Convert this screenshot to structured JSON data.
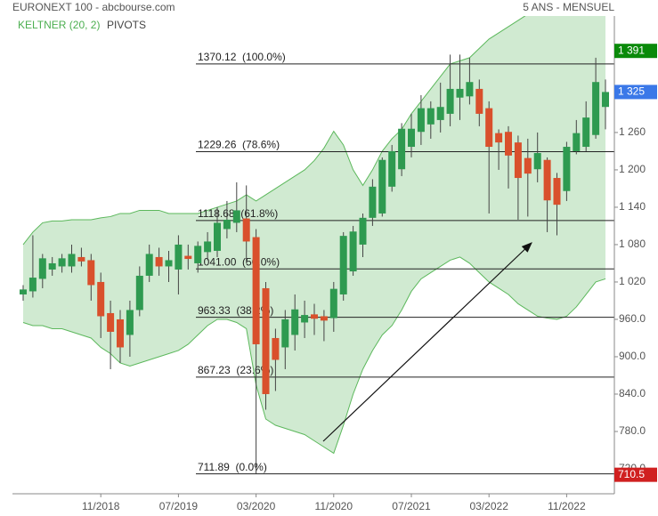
{
  "chart_data": {
    "type": "candlestick",
    "title": "EURONEXT 100 - abcbourse.com",
    "subtitle": "5 ANS - MENSUEL",
    "indicators": [
      "KELTNER (20, 2)",
      "PIVOTS"
    ],
    "categories": [
      null,
      null,
      null,
      null,
      null,
      null,
      null,
      null,
      "11/2018",
      null,
      null,
      null,
      null,
      null,
      null,
      null,
      "07/2019",
      null,
      null,
      null,
      null,
      null,
      null,
      null,
      "03/2020",
      null,
      null,
      null,
      null,
      null,
      null,
      null,
      "11/2020",
      null,
      null,
      null,
      null,
      null,
      null,
      null,
      "07/2021",
      null,
      null,
      null,
      null,
      null,
      null,
      null,
      "03/2022",
      null,
      null,
      null,
      null,
      null,
      null,
      null,
      "11/2022",
      null,
      null,
      null,
      null
    ],
    "ohlc": {
      "open": [
        1000,
        1005,
        1025,
        1040,
        1045,
        1045,
        1060,
        1055,
        1020,
        970,
        960,
        935,
        975,
        1030,
        1060,
        1045,
        1040,
        1062,
        1050,
        1068,
        1070,
        1105,
        1115,
        1122,
        1092,
        1010,
        930,
        915,
        935,
        955,
        968,
        965,
        962,
        1000,
        1037,
        1080,
        1123,
        1130,
        1173,
        1201,
        1237,
        1261,
        1273,
        1280,
        1290,
        1316,
        1318,
        1330,
        1299,
        1259,
        1261,
        1244,
        1219,
        1201,
        1216,
        1187,
        1166,
        1230,
        1237,
        1256,
        1301
      ],
      "high": [
        1015,
        1095,
        1065,
        1060,
        1065,
        1080,
        1075,
        1065,
        1035,
        990,
        975,
        990,
        1045,
        1080,
        1075,
        1070,
        1095,
        1080,
        1085,
        1100,
        1140,
        1150,
        1180,
        1175,
        1105,
        1020,
        945,
        975,
        1000,
        990,
        985,
        975,
        1020,
        1100,
        1110,
        1130,
        1185,
        1220,
        1240,
        1275,
        1290,
        1320,
        1310,
        1340,
        1385,
        1385,
        1380,
        1345,
        1310,
        1265,
        1270,
        1255,
        1250,
        1260,
        1220,
        1195,
        1245,
        1280,
        1310,
        1380,
        1345
      ],
      "low": [
        990,
        995,
        1010,
        1030,
        1035,
        1035,
        1045,
        990,
        930,
        880,
        890,
        900,
        965,
        1020,
        1030,
        1020,
        1000,
        1040,
        1035,
        1055,
        1060,
        1090,
        1100,
        1050,
        712,
        815,
        845,
        880,
        910,
        930,
        935,
        925,
        940,
        990,
        1030,
        1060,
        1110,
        1125,
        1165,
        1190,
        1220,
        1240,
        1250,
        1260,
        1270,
        1280,
        1305,
        1270,
        1130,
        1200,
        1170,
        1120,
        1125,
        1180,
        1100,
        1095,
        1150,
        1225,
        1230,
        1250,
        1265
      ],
      "close": [
        1008,
        1027,
        1058,
        1050,
        1058,
        1065,
        1053,
        1015,
        965,
        940,
        915,
        975,
        1030,
        1065,
        1045,
        1055,
        1080,
        1057,
        1078,
        1085,
        1115,
        1120,
        1135,
        1085,
        920,
        840,
        895,
        960,
        976,
        967,
        961,
        958,
        1009,
        1094,
        1101,
        1123,
        1173,
        1216,
        1230,
        1266,
        1266,
        1299,
        1299,
        1301,
        1330,
        1330,
        1341,
        1290,
        1237,
        1244,
        1223,
        1187,
        1194,
        1227,
        1151,
        1144,
        1237,
        1259,
        1284,
        1341,
        1325
      ]
    },
    "up_color": "#2e9a50",
    "down_color": "#d9502c",
    "keltner": {
      "color": "#5cb85c",
      "fill": "#c8e6c9",
      "upper": [
        1080,
        1100,
        1115,
        1118,
        1118,
        1120,
        1120,
        1120,
        1123,
        1125,
        1130,
        1130,
        1135,
        1135,
        1135,
        1130,
        1130,
        1130,
        1130,
        1135,
        1140,
        1145,
        1150,
        1160,
        1150,
        1160,
        1170,
        1180,
        1190,
        1200,
        1215,
        1235,
        1262,
        1240,
        1200,
        1175,
        1200,
        1230,
        1250,
        1265,
        1290,
        1310,
        1330,
        1350,
        1370,
        1375,
        1380,
        1395,
        1410,
        1420,
        1430,
        1440,
        1450,
        1455,
        1460,
        1462,
        1460,
        1458,
        1455,
        1455,
        1450
      ],
      "lower": [
        955,
        950,
        950,
        945,
        945,
        940,
        935,
        930,
        915,
        905,
        890,
        885,
        890,
        895,
        900,
        905,
        910,
        920,
        935,
        950,
        960,
        960,
        955,
        945,
        855,
        800,
        790,
        785,
        780,
        775,
        765,
        755,
        745,
        790,
        840,
        880,
        910,
        935,
        950,
        975,
        1005,
        1025,
        1035,
        1045,
        1055,
        1060,
        1050,
        1035,
        1020,
        1010,
        1000,
        985,
        975,
        965,
        962,
        960,
        965,
        980,
        1000,
        1020,
        1025
      ]
    },
    "ylim": [
      680,
      1447
    ],
    "yticks": [
      {
        "value": 1260,
        "label": "1 260"
      },
      {
        "value": 1200,
        "label": "1 200"
      },
      {
        "value": 1140,
        "label": "1 140"
      },
      {
        "value": 1080,
        "label": "1 080"
      },
      {
        "value": 1020,
        "label": "1 020"
      },
      {
        "value": 960,
        "label": "960.0"
      },
      {
        "value": 900,
        "label": "900.0"
      },
      {
        "value": 840,
        "label": "840.0"
      },
      {
        "value": 780,
        "label": "780.0"
      },
      {
        "value": 720,
        "label": "720.0"
      }
    ],
    "levels": [
      {
        "value": 1370.12,
        "label": "1370.12  (100.0%)"
      },
      {
        "value": 1229.26,
        "label": "1229.26  (78.6%)"
      },
      {
        "value": 1118.68,
        "label": "1118.68  (61.8%)"
      },
      {
        "value": 1041.0,
        "label": "1041.00  (50.0%)"
      },
      {
        "value": 963.33,
        "label": "963.33  (38.2%)"
      },
      {
        "value": 867.23,
        "label": "867.23  (23.6%)"
      },
      {
        "value": 711.89,
        "label": "711.89  (0.0%)"
      }
    ],
    "price_tags": [
      {
        "value": 1391,
        "label": "1 391",
        "color": "#0a8a0a"
      },
      {
        "value": 1325,
        "label": "1 325",
        "color": "#3a78e8"
      },
      {
        "value": 710.5,
        "label": "710.5",
        "color": "#d02020"
      }
    ]
  }
}
